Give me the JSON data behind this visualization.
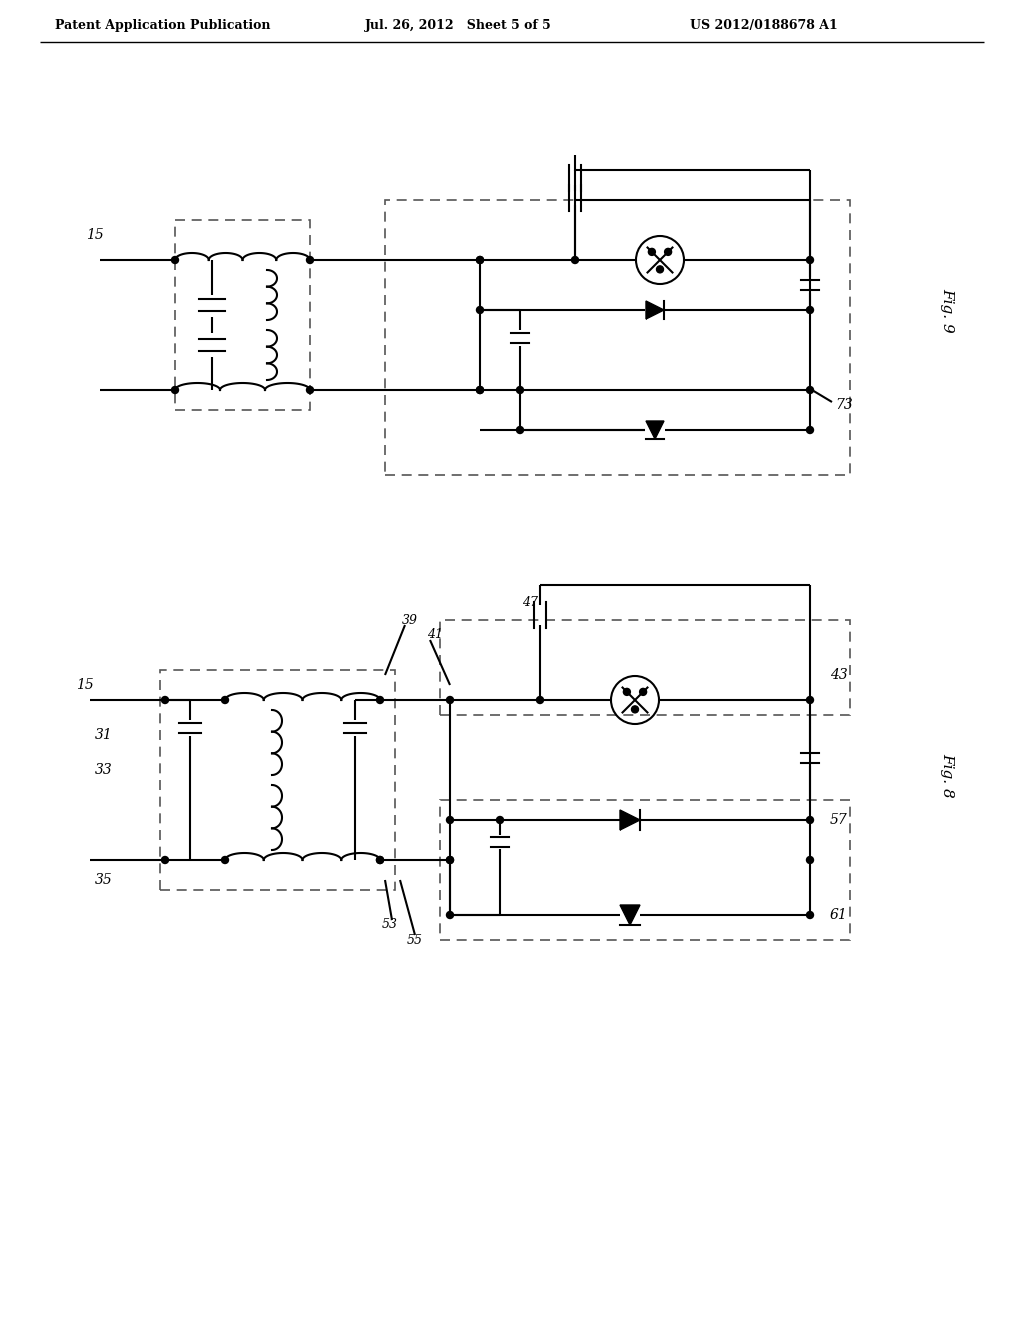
{
  "bg_color": "#ffffff",
  "header_text": "Patent Application Publication",
  "header_date": "Jul. 26, 2012   Sheet 5 of 5",
  "header_patent": "US 2012/0188678 A1",
  "fig9_label": "Fig. 9",
  "fig8_label": "Fig. 8",
  "label_15_top": "15",
  "label_73": "73",
  "label_15_bot": "15",
  "label_31": "31",
  "label_33": "33",
  "label_35": "35",
  "label_39": "39",
  "label_41": "41",
  "label_43": "43",
  "label_47": "47",
  "label_53": "53",
  "label_55": "55",
  "label_57": "57",
  "label_61": "61"
}
